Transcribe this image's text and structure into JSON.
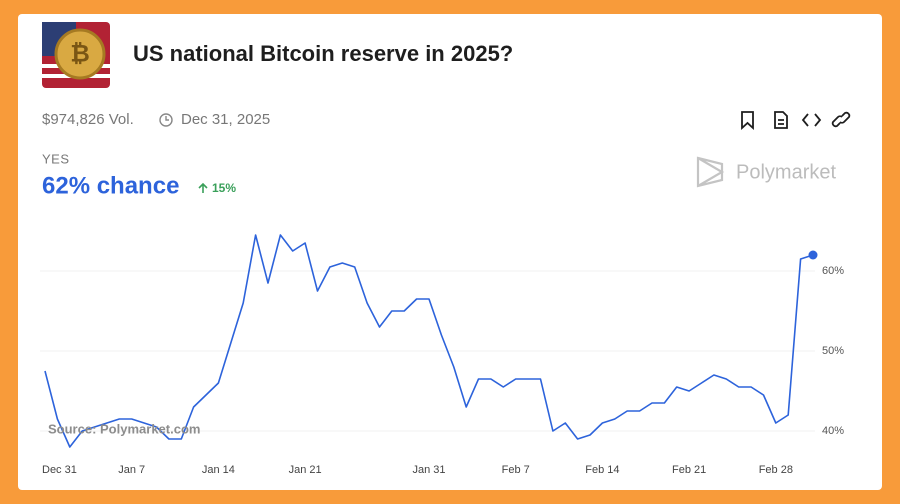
{
  "header": {
    "title": "US national Bitcoin reserve in 2025?",
    "volume": "$974,826 Vol.",
    "end_date": "Dec 31, 2025"
  },
  "outcome": {
    "label": "YES",
    "chance": "62% chance",
    "change": "15%"
  },
  "brand": "Polymarket",
  "chart_data": {
    "type": "line",
    "color": "#2d63db",
    "grid": true,
    "annotation": "Source: Polymarket.com",
    "x": [
      "Dec 31",
      "Jan 1",
      "Jan 2",
      "Jan 3",
      "Jan 4",
      "Jan 5",
      "Jan 6",
      "Jan 7",
      "Jan 8",
      "Jan 9",
      "Jan 10",
      "Jan 11",
      "Jan 12",
      "Jan 13",
      "Jan 14",
      "Jan 15",
      "Jan 16",
      "Jan 17",
      "Jan 18",
      "Jan 19",
      "Jan 20",
      "Jan 21",
      "Jan 22",
      "Jan 23",
      "Jan 24",
      "Jan 25",
      "Jan 26",
      "Jan 27",
      "Jan 28",
      "Jan 29",
      "Jan 30",
      "Jan 31",
      "Feb 1",
      "Feb 2",
      "Feb 3",
      "Feb 4",
      "Feb 5",
      "Feb 6",
      "Feb 7",
      "Feb 8",
      "Feb 9",
      "Feb 10",
      "Feb 11",
      "Feb 12",
      "Feb 13",
      "Feb 14",
      "Feb 15",
      "Feb 16",
      "Feb 17",
      "Feb 18",
      "Feb 19",
      "Feb 20",
      "Feb 21",
      "Feb 22",
      "Feb 23",
      "Feb 24",
      "Feb 25",
      "Feb 26",
      "Feb 27",
      "Feb 28",
      "Mar 1",
      "Mar 2",
      "Mar 3"
    ],
    "values": [
      47.5,
      41.5,
      38,
      40,
      40.5,
      41,
      41.5,
      41.5,
      41,
      40.5,
      39,
      39,
      43,
      44.5,
      46,
      51,
      56,
      64.5,
      58.5,
      64.5,
      62.5,
      63.5,
      57.5,
      60.5,
      61,
      60.5,
      56,
      53,
      55,
      55,
      56.5,
      56.5,
      52,
      48,
      43,
      46.5,
      46.5,
      45.5,
      46.5,
      46.5,
      46.5,
      40,
      41,
      39,
      39.5,
      41,
      41.5,
      42.5,
      42.5,
      43.5,
      43.5,
      45.5,
      45,
      46,
      47,
      46.5,
      45.5,
      45.5,
      44.5,
      41,
      42,
      61.5,
      62
    ],
    "xticks": [
      "Dec 31",
      "Jan 7",
      "Jan 14",
      "Jan 21",
      "Jan 31",
      "Feb 7",
      "Feb 14",
      "Feb 21",
      "Feb 28"
    ],
    "ylim": [
      37,
      65
    ],
    "yticks": [
      {
        "value": 40,
        "label": "40%"
      },
      {
        "value": 50,
        "label": "50%"
      },
      {
        "value": 60,
        "label": "60%"
      }
    ]
  }
}
